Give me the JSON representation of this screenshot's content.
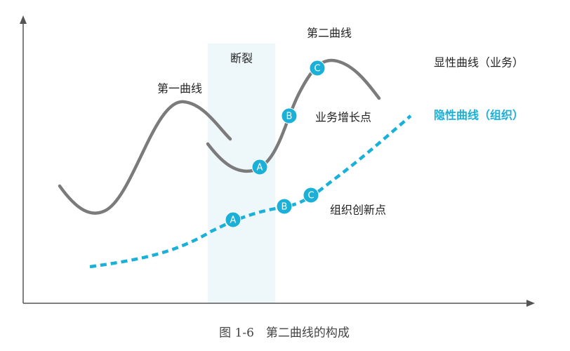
{
  "labels": {
    "first_curve": "第一曲线",
    "break": "断裂",
    "second_curve": "第二曲线",
    "explicit_curve": "显性曲线（业务）",
    "implicit_curve": "隐性曲线（组织）",
    "business_growth_point": "业务增长点",
    "org_innovation_point": "组织创新点"
  },
  "markers": {
    "business": [
      "A",
      "B",
      "C"
    ],
    "organization": [
      "A",
      "B",
      "C"
    ]
  },
  "caption": "图 1-6　第二曲线的构成"
}
